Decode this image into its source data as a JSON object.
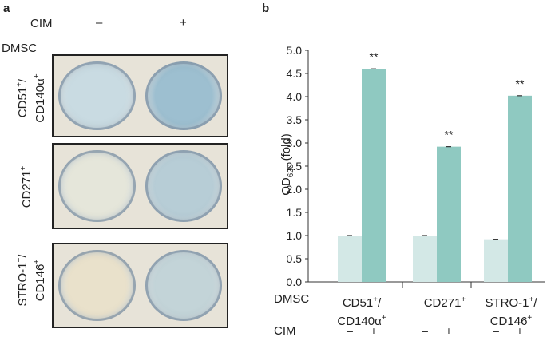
{
  "panel_a": {
    "letter": "a",
    "cim_label": "CIM",
    "dmsc_label": "DMSC",
    "col_minus": "–",
    "col_plus": "+",
    "rows": [
      {
        "label_1": "CD51",
        "sup_1": "+",
        "sep": "/",
        "label_2": "CD140α",
        "sup_2": "+"
      },
      {
        "label_1": "CD271",
        "sup_1": "+"
      },
      {
        "label_1": "STRO-1",
        "sup_1": "+",
        "sep": "/",
        "label_2": "CD146",
        "sup_2": "+"
      }
    ],
    "well_colors": {
      "row1_minus": "#c9dbe2",
      "row1_plus": "#9dbfd0",
      "row2_minus": "#e5e6da",
      "row2_plus": "#b7cdd6",
      "row3_minus": "#e9e1cb",
      "row3_plus": "#c3d4d8"
    }
  },
  "panel_b": {
    "letter": "b",
    "dmsc_label": "DMSC",
    "cim_label": "CIM",
    "groups": [
      {
        "line1": "CD51",
        "sup1": "+",
        "sep": "/",
        "line2": "CD140α",
        "sup2": "+"
      },
      {
        "line1": "CD271",
        "sup1": "+"
      },
      {
        "line1": "STRO-1",
        "sup1": "+",
        "sep": "/",
        "line2": "CD146",
        "sup2": "+"
      }
    ],
    "cim_signs": [
      "–",
      "+",
      "–",
      "+",
      "–",
      "+"
    ],
    "significance": "**"
  },
  "chart_data": {
    "type": "bar",
    "ylabel_main": "OD",
    "ylabel_sub": "620",
    "ylabel_suffix": " (fold)",
    "ylim": [
      0,
      5.0
    ],
    "yticks": [
      "0.0",
      "0.5",
      "1.0",
      "1.5",
      "2.0",
      "2.5",
      "3.0",
      "3.5",
      "4.0",
      "4.5",
      "5.0"
    ],
    "categories": [
      "CD51+/CD140α+",
      "CD271+",
      "STRO-1+/CD146+"
    ],
    "series": [
      {
        "values": [
          1.0,
          1.0,
          0.92
        ],
        "color": "#d3e8e6"
      },
      {
        "values": [
          4.6,
          2.92,
          4.02
        ],
        "color": "#8fc9c1"
      }
    ],
    "grid": false
  }
}
